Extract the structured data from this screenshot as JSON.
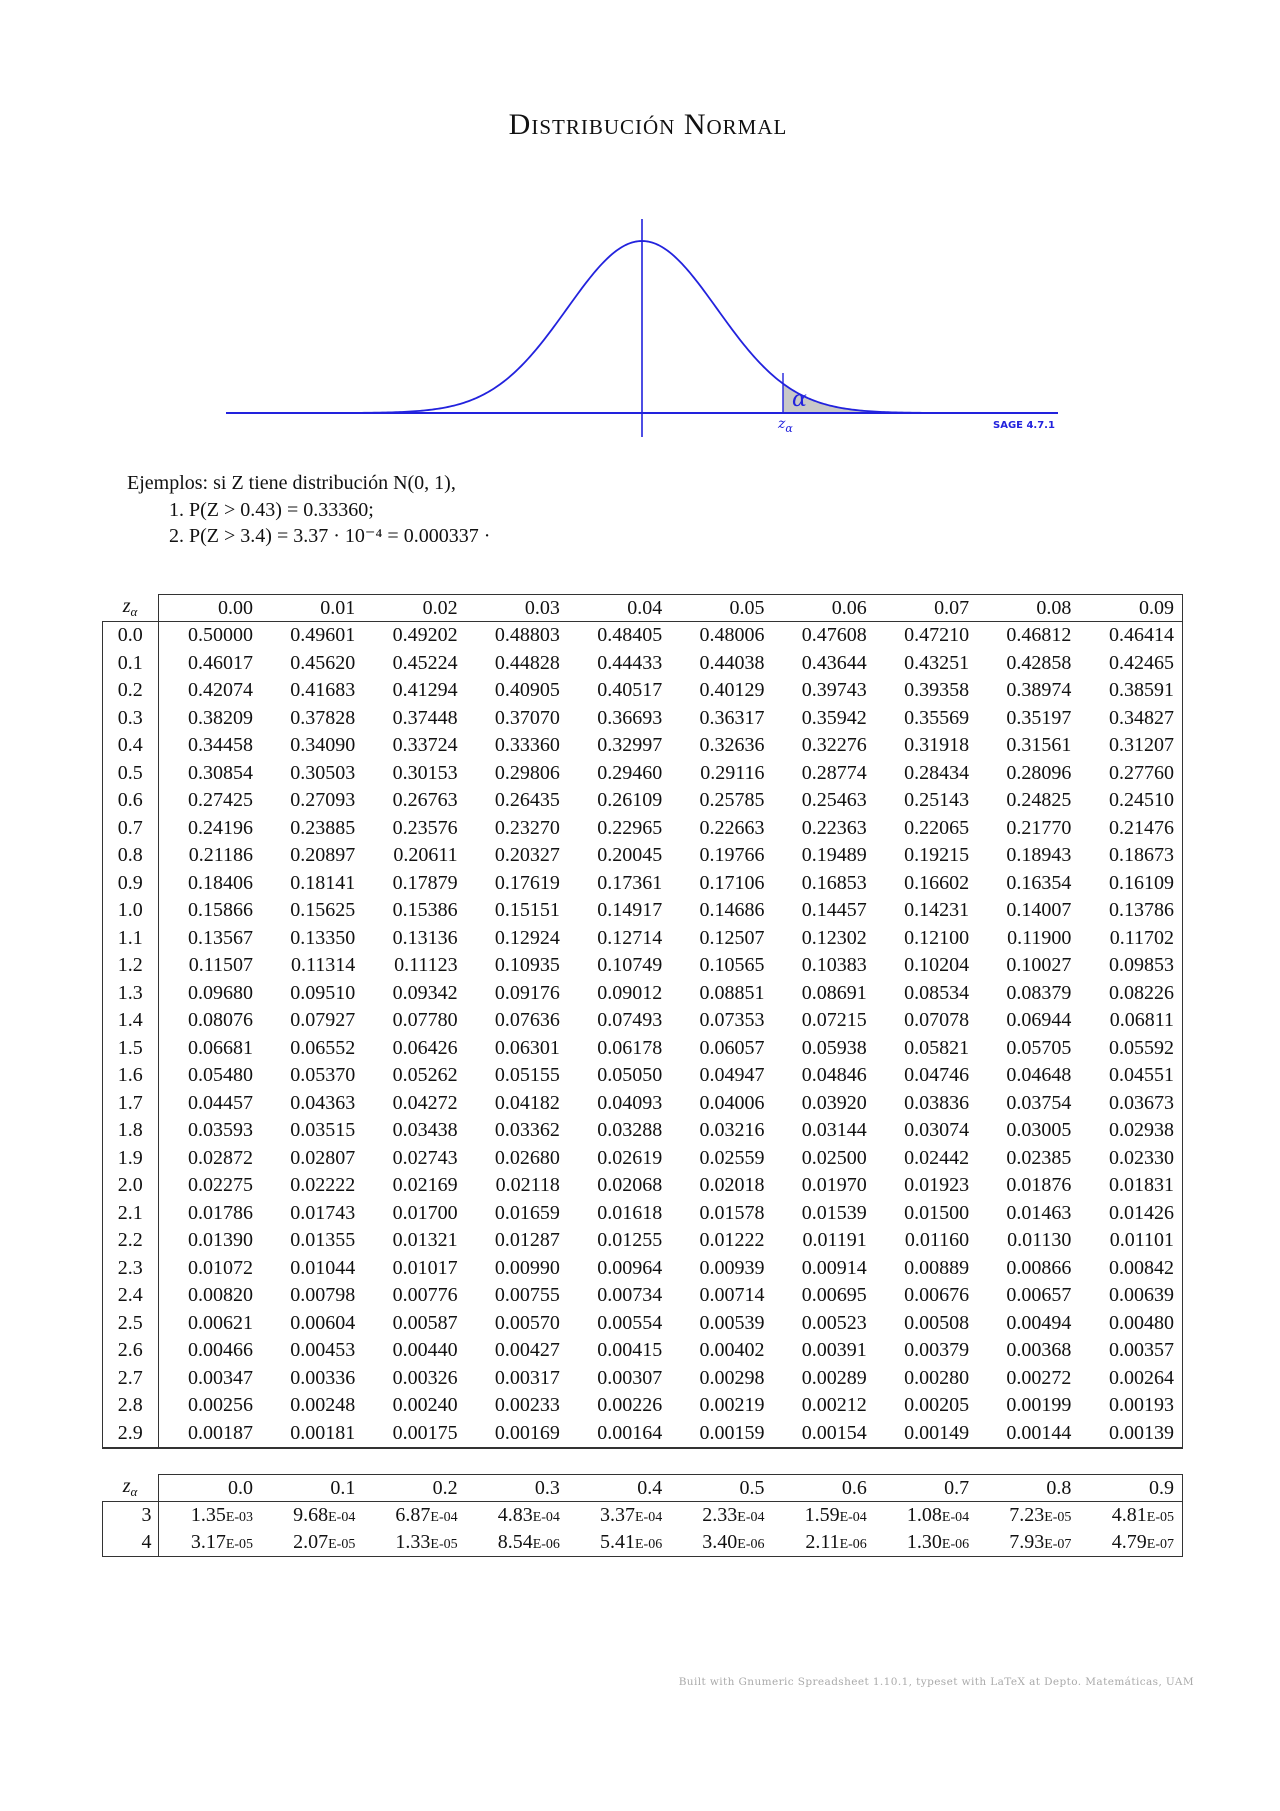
{
  "title": "Distribución Normal",
  "plot": {
    "curve_color": "#2222dd",
    "shade_color": "#c8c8c8",
    "tail_label": "α",
    "z_label": "z",
    "z_subscript": "α",
    "watermark": "SAGE 4.7.1"
  },
  "examples": {
    "intro": "Ejemplos: si Z tiene distribución N(0, 1),",
    "items": [
      "1. P(Z > 0.43) = 0.33360;",
      "2. P(Z > 3.4) = 3.37 · 10⁻⁴ = 0.000337 ·"
    ]
  },
  "main_table": {
    "corner": "z",
    "corner_sub": "α",
    "columns": [
      "0.00",
      "0.01",
      "0.02",
      "0.03",
      "0.04",
      "0.05",
      "0.06",
      "0.07",
      "0.08",
      "0.09"
    ],
    "rows": [
      {
        "z": "0.0",
        "v": [
          "0.50000",
          "0.49601",
          "0.49202",
          "0.48803",
          "0.48405",
          "0.48006",
          "0.47608",
          "0.47210",
          "0.46812",
          "0.46414"
        ]
      },
      {
        "z": "0.1",
        "v": [
          "0.46017",
          "0.45620",
          "0.45224",
          "0.44828",
          "0.44433",
          "0.44038",
          "0.43644",
          "0.43251",
          "0.42858",
          "0.42465"
        ]
      },
      {
        "z": "0.2",
        "v": [
          "0.42074",
          "0.41683",
          "0.41294",
          "0.40905",
          "0.40517",
          "0.40129",
          "0.39743",
          "0.39358",
          "0.38974",
          "0.38591"
        ]
      },
      {
        "z": "0.3",
        "v": [
          "0.38209",
          "0.37828",
          "0.37448",
          "0.37070",
          "0.36693",
          "0.36317",
          "0.35942",
          "0.35569",
          "0.35197",
          "0.34827"
        ]
      },
      {
        "z": "0.4",
        "v": [
          "0.34458",
          "0.34090",
          "0.33724",
          "0.33360",
          "0.32997",
          "0.32636",
          "0.32276",
          "0.31918",
          "0.31561",
          "0.31207"
        ]
      },
      {
        "z": "0.5",
        "v": [
          "0.30854",
          "0.30503",
          "0.30153",
          "0.29806",
          "0.29460",
          "0.29116",
          "0.28774",
          "0.28434",
          "0.28096",
          "0.27760"
        ]
      },
      {
        "z": "0.6",
        "v": [
          "0.27425",
          "0.27093",
          "0.26763",
          "0.26435",
          "0.26109",
          "0.25785",
          "0.25463",
          "0.25143",
          "0.24825",
          "0.24510"
        ]
      },
      {
        "z": "0.7",
        "v": [
          "0.24196",
          "0.23885",
          "0.23576",
          "0.23270",
          "0.22965",
          "0.22663",
          "0.22363",
          "0.22065",
          "0.21770",
          "0.21476"
        ]
      },
      {
        "z": "0.8",
        "v": [
          "0.21186",
          "0.20897",
          "0.20611",
          "0.20327",
          "0.20045",
          "0.19766",
          "0.19489",
          "0.19215",
          "0.18943",
          "0.18673"
        ]
      },
      {
        "z": "0.9",
        "v": [
          "0.18406",
          "0.18141",
          "0.17879",
          "0.17619",
          "0.17361",
          "0.17106",
          "0.16853",
          "0.16602",
          "0.16354",
          "0.16109"
        ]
      },
      {
        "z": "1.0",
        "v": [
          "0.15866",
          "0.15625",
          "0.15386",
          "0.15151",
          "0.14917",
          "0.14686",
          "0.14457",
          "0.14231",
          "0.14007",
          "0.13786"
        ]
      },
      {
        "z": "1.1",
        "v": [
          "0.13567",
          "0.13350",
          "0.13136",
          "0.12924",
          "0.12714",
          "0.12507",
          "0.12302",
          "0.12100",
          "0.11900",
          "0.11702"
        ]
      },
      {
        "z": "1.2",
        "v": [
          "0.11507",
          "0.11314",
          "0.11123",
          "0.10935",
          "0.10749",
          "0.10565",
          "0.10383",
          "0.10204",
          "0.10027",
          "0.09853"
        ]
      },
      {
        "z": "1.3",
        "v": [
          "0.09680",
          "0.09510",
          "0.09342",
          "0.09176",
          "0.09012",
          "0.08851",
          "0.08691",
          "0.08534",
          "0.08379",
          "0.08226"
        ]
      },
      {
        "z": "1.4",
        "v": [
          "0.08076",
          "0.07927",
          "0.07780",
          "0.07636",
          "0.07493",
          "0.07353",
          "0.07215",
          "0.07078",
          "0.06944",
          "0.06811"
        ]
      },
      {
        "z": "1.5",
        "v": [
          "0.06681",
          "0.06552",
          "0.06426",
          "0.06301",
          "0.06178",
          "0.06057",
          "0.05938",
          "0.05821",
          "0.05705",
          "0.05592"
        ]
      },
      {
        "z": "1.6",
        "v": [
          "0.05480",
          "0.05370",
          "0.05262",
          "0.05155",
          "0.05050",
          "0.04947",
          "0.04846",
          "0.04746",
          "0.04648",
          "0.04551"
        ]
      },
      {
        "z": "1.7",
        "v": [
          "0.04457",
          "0.04363",
          "0.04272",
          "0.04182",
          "0.04093",
          "0.04006",
          "0.03920",
          "0.03836",
          "0.03754",
          "0.03673"
        ]
      },
      {
        "z": "1.8",
        "v": [
          "0.03593",
          "0.03515",
          "0.03438",
          "0.03362",
          "0.03288",
          "0.03216",
          "0.03144",
          "0.03074",
          "0.03005",
          "0.02938"
        ]
      },
      {
        "z": "1.9",
        "v": [
          "0.02872",
          "0.02807",
          "0.02743",
          "0.02680",
          "0.02619",
          "0.02559",
          "0.02500",
          "0.02442",
          "0.02385",
          "0.02330"
        ]
      },
      {
        "z": "2.0",
        "v": [
          "0.02275",
          "0.02222",
          "0.02169",
          "0.02118",
          "0.02068",
          "0.02018",
          "0.01970",
          "0.01923",
          "0.01876",
          "0.01831"
        ]
      },
      {
        "z": "2.1",
        "v": [
          "0.01786",
          "0.01743",
          "0.01700",
          "0.01659",
          "0.01618",
          "0.01578",
          "0.01539",
          "0.01500",
          "0.01463",
          "0.01426"
        ]
      },
      {
        "z": "2.2",
        "v": [
          "0.01390",
          "0.01355",
          "0.01321",
          "0.01287",
          "0.01255",
          "0.01222",
          "0.01191",
          "0.01160",
          "0.01130",
          "0.01101"
        ]
      },
      {
        "z": "2.3",
        "v": [
          "0.01072",
          "0.01044",
          "0.01017",
          "0.00990",
          "0.00964",
          "0.00939",
          "0.00914",
          "0.00889",
          "0.00866",
          "0.00842"
        ]
      },
      {
        "z": "2.4",
        "v": [
          "0.00820",
          "0.00798",
          "0.00776",
          "0.00755",
          "0.00734",
          "0.00714",
          "0.00695",
          "0.00676",
          "0.00657",
          "0.00639"
        ]
      },
      {
        "z": "2.5",
        "v": [
          "0.00621",
          "0.00604",
          "0.00587",
          "0.00570",
          "0.00554",
          "0.00539",
          "0.00523",
          "0.00508",
          "0.00494",
          "0.00480"
        ]
      },
      {
        "z": "2.6",
        "v": [
          "0.00466",
          "0.00453",
          "0.00440",
          "0.00427",
          "0.00415",
          "0.00402",
          "0.00391",
          "0.00379",
          "0.00368",
          "0.00357"
        ]
      },
      {
        "z": "2.7",
        "v": [
          "0.00347",
          "0.00336",
          "0.00326",
          "0.00317",
          "0.00307",
          "0.00298",
          "0.00289",
          "0.00280",
          "0.00272",
          "0.00264"
        ]
      },
      {
        "z": "2.8",
        "v": [
          "0.00256",
          "0.00248",
          "0.00240",
          "0.00233",
          "0.00226",
          "0.00219",
          "0.00212",
          "0.00205",
          "0.00199",
          "0.00193"
        ]
      },
      {
        "z": "2.9",
        "v": [
          "0.00187",
          "0.00181",
          "0.00175",
          "0.00169",
          "0.00164",
          "0.00159",
          "0.00154",
          "0.00149",
          "0.00144",
          "0.00139"
        ]
      }
    ]
  },
  "tail_table": {
    "corner": "z",
    "corner_sub": "α",
    "columns": [
      "0.0",
      "0.1",
      "0.2",
      "0.3",
      "0.4",
      "0.5",
      "0.6",
      "0.7",
      "0.8",
      "0.9"
    ],
    "rows": [
      {
        "z": "3",
        "v": [
          [
            "1.35",
            "E-03"
          ],
          [
            "9.68",
            "E-04"
          ],
          [
            "6.87",
            "E-04"
          ],
          [
            "4.83",
            "E-04"
          ],
          [
            "3.37",
            "E-04"
          ],
          [
            "2.33",
            "E-04"
          ],
          [
            "1.59",
            "E-04"
          ],
          [
            "1.08",
            "E-04"
          ],
          [
            "7.23",
            "E-05"
          ],
          [
            "4.81",
            "E-05"
          ]
        ]
      },
      {
        "z": "4",
        "v": [
          [
            "3.17",
            "E-05"
          ],
          [
            "2.07",
            "E-05"
          ],
          [
            "1.33",
            "E-05"
          ],
          [
            "8.54",
            "E-06"
          ],
          [
            "5.41",
            "E-06"
          ],
          [
            "3.40",
            "E-06"
          ],
          [
            "2.11",
            "E-06"
          ],
          [
            "1.30",
            "E-06"
          ],
          [
            "7.93",
            "E-07"
          ],
          [
            "4.79",
            "E-07"
          ]
        ]
      }
    ]
  },
  "footer": "Built with Gnumeric Spreadsheet 1.10.1, typeset with LaTeX at Depto. Matemáticas, UAM"
}
